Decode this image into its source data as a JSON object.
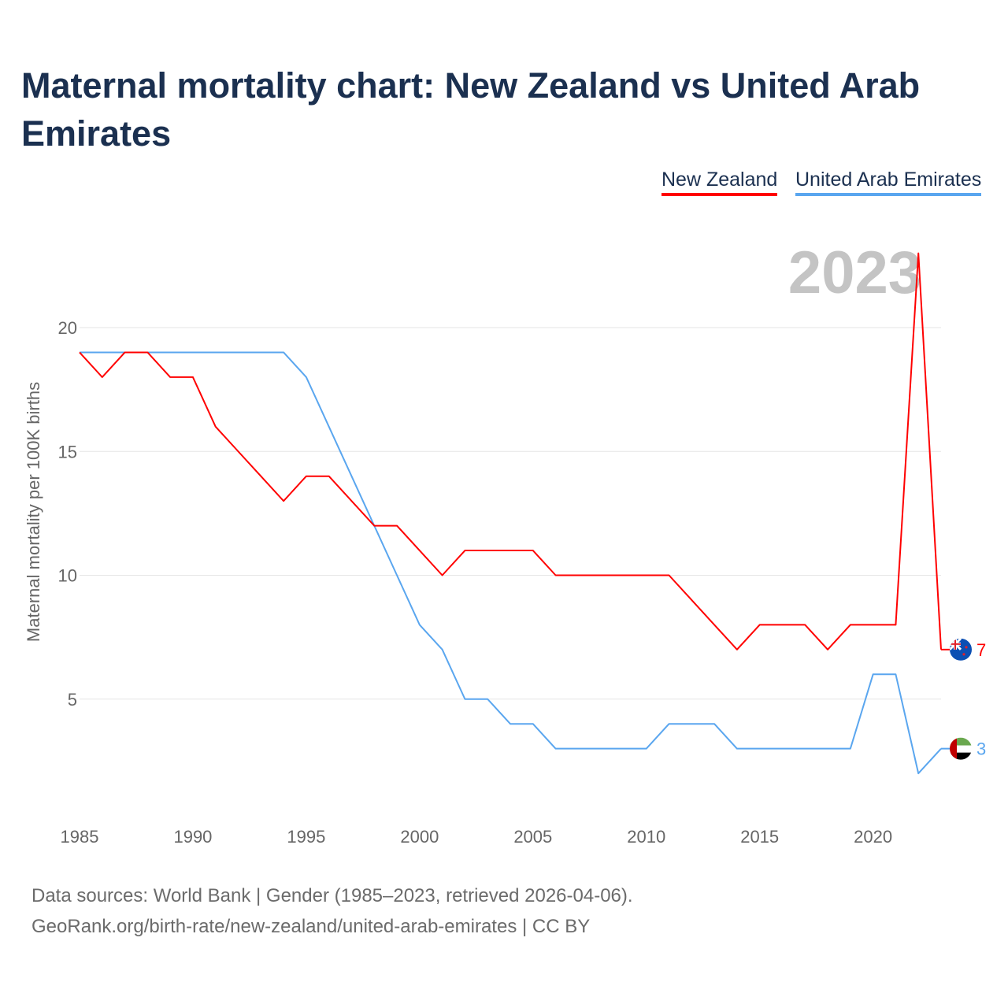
{
  "chart_data": {
    "type": "line",
    "title": "Maternal mortality chart: New Zealand vs United Arab Emirates",
    "ylabel": "Maternal mortality per 100K births",
    "xlabel": "",
    "year_label": "2023",
    "x": [
      1985,
      1986,
      1987,
      1988,
      1989,
      1990,
      1991,
      1992,
      1993,
      1994,
      1995,
      1996,
      1997,
      1998,
      1999,
      2000,
      2001,
      2002,
      2003,
      2004,
      2005,
      2006,
      2007,
      2008,
      2009,
      2010,
      2011,
      2012,
      2013,
      2014,
      2015,
      2016,
      2017,
      2018,
      2019,
      2020,
      2021,
      2022,
      2023
    ],
    "xlim": [
      1985,
      2023
    ],
    "ylim": [
      0,
      20
    ],
    "xticks": [
      "1985",
      "1990",
      "1995",
      "2000",
      "2005",
      "2010",
      "2015",
      "2020"
    ],
    "yticks": [
      "5",
      "10",
      "15",
      "20"
    ],
    "grid": true,
    "legend_position": "top-right",
    "series": [
      {
        "name": "New Zealand",
        "color": "#ff0000",
        "end_label": "7",
        "icon": "new-zealand-flag-icon",
        "values": [
          19,
          18,
          19,
          19,
          18,
          18,
          16,
          15,
          14,
          13,
          14,
          14,
          13,
          12,
          12,
          11,
          10,
          11,
          11,
          11,
          11,
          10,
          10,
          10,
          10,
          10,
          10,
          9,
          8,
          7,
          8,
          8,
          8,
          7,
          8,
          8,
          8,
          23,
          7
        ]
      },
      {
        "name": "United Arab Emirates",
        "color": "#5aa6ef",
        "end_label": "3",
        "icon": "uae-flag-icon",
        "values": [
          19,
          19,
          19,
          19,
          19,
          19,
          19,
          19,
          19,
          19,
          18,
          16,
          14,
          12,
          10,
          8,
          7,
          5,
          5,
          4,
          4,
          3,
          3,
          3,
          3,
          3,
          4,
          4,
          4,
          3,
          3,
          3,
          3,
          3,
          3,
          6,
          6,
          2,
          3
        ]
      }
    ]
  },
  "footer": {
    "source_line": "Data sources: World Bank | Gender (1985–2023, retrieved 2026-04-06).",
    "credit_line": "GeoRank.org/birth-rate/new-zealand/united-arab-emirates | CC BY"
  }
}
